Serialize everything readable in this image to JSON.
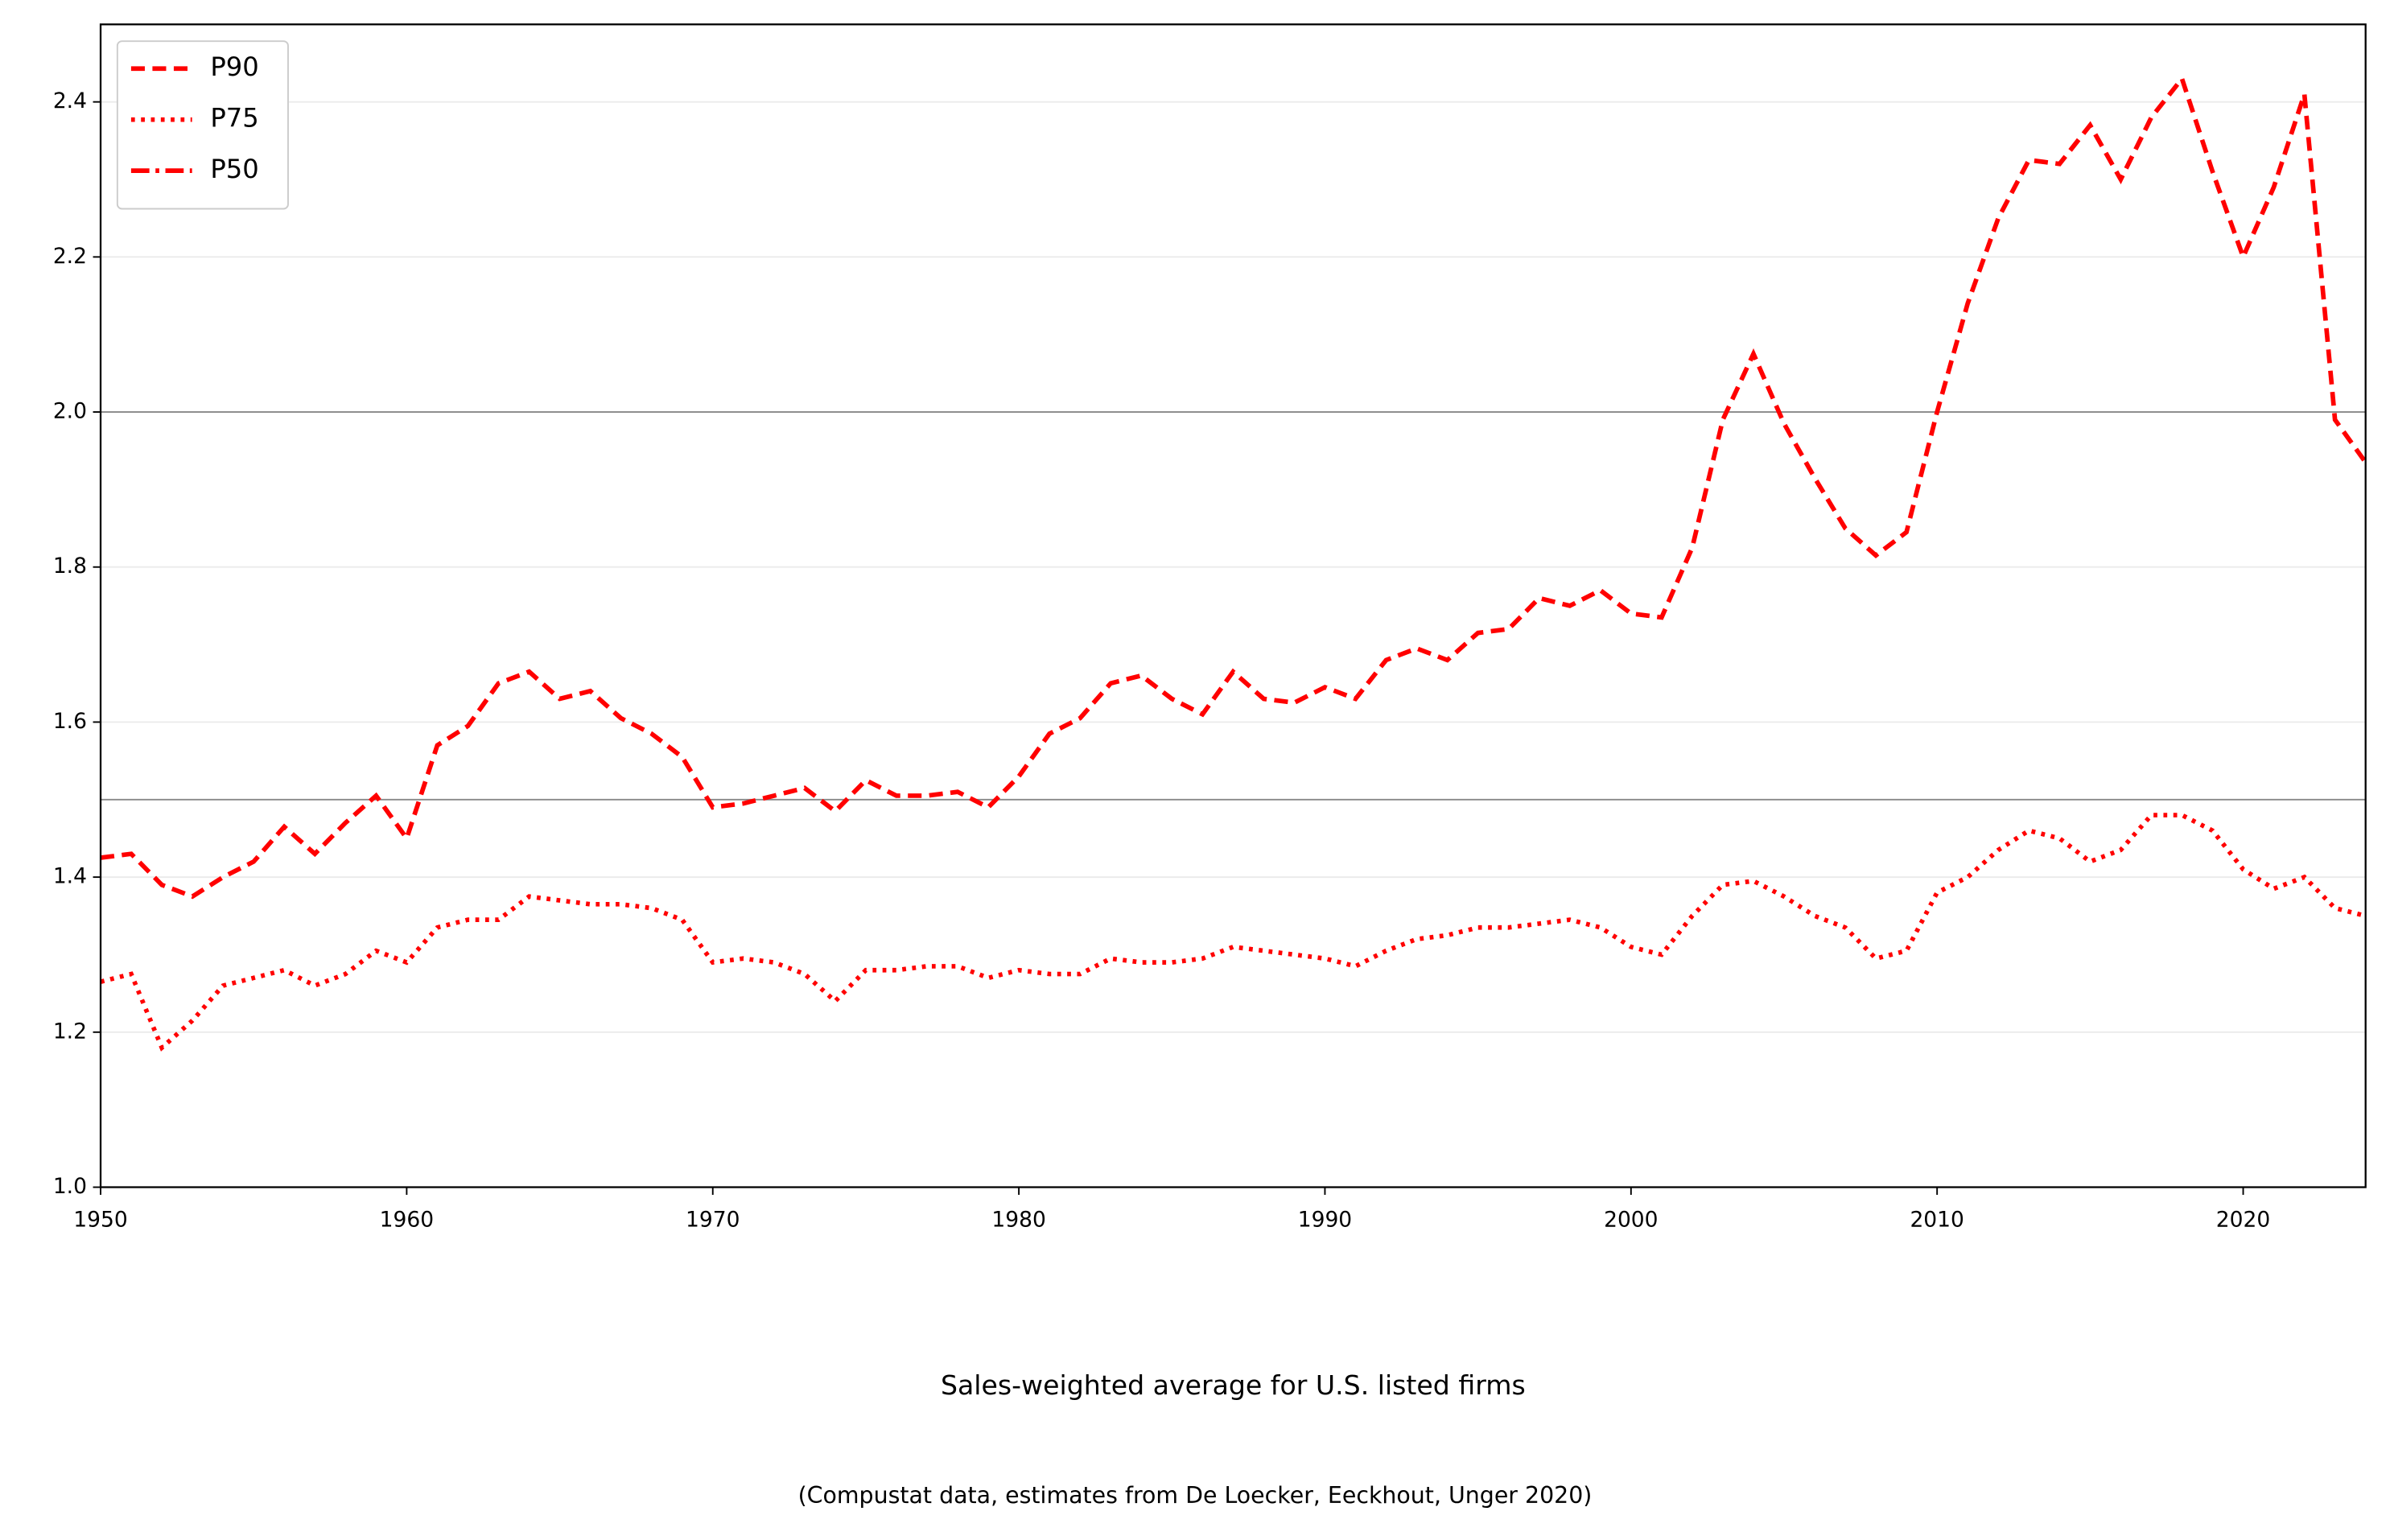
{
  "chart_data": {
    "type": "line",
    "xlabel": "Sales-weighted average for U.S. listed firms",
    "note": "(Compustat data, estimates from De Loecker, Eeckhout, Unger 2020)",
    "x": [
      1950,
      1951,
      1952,
      1953,
      1954,
      1955,
      1956,
      1957,
      1958,
      1959,
      1960,
      1961,
      1962,
      1963,
      1964,
      1965,
      1966,
      1967,
      1968,
      1969,
      1970,
      1971,
      1972,
      1973,
      1974,
      1975,
      1976,
      1977,
      1978,
      1979,
      1980,
      1981,
      1982,
      1983,
      1984,
      1985,
      1986,
      1987,
      1988,
      1989,
      1990,
      1991,
      1992,
      1993,
      1994,
      1995,
      1996,
      1997,
      1998,
      1999,
      2000,
      2001,
      2002,
      2003,
      2004,
      2005,
      2006,
      2007,
      2008,
      2009,
      2010,
      2011,
      2012,
      2013,
      2014,
      2015,
      2016,
      2017,
      2018,
      2019,
      2020,
      2021,
      2022,
      2023,
      2024
    ],
    "series": [
      {
        "name": "P90",
        "color": "#ff0000",
        "dash": "dashed",
        "values": [
          1.425,
          1.43,
          1.39,
          1.375,
          1.4,
          1.42,
          1.465,
          1.43,
          1.47,
          1.505,
          1.45,
          1.57,
          1.595,
          1.65,
          1.665,
          1.63,
          1.64,
          1.605,
          1.585,
          1.555,
          1.49,
          1.495,
          1.505,
          1.515,
          1.485,
          1.525,
          1.505,
          1.505,
          1.51,
          1.49,
          1.53,
          1.585,
          1.605,
          1.65,
          1.66,
          1.63,
          1.61,
          1.665,
          1.63,
          1.625,
          1.645,
          1.63,
          1.68,
          1.695,
          1.68,
          1.715,
          1.72,
          1.76,
          1.75,
          1.77,
          1.74,
          1.735,
          1.825,
          1.99,
          2.075,
          1.985,
          1.915,
          1.85,
          1.815,
          1.845,
          2.0,
          2.14,
          2.25,
          2.325,
          2.32,
          2.37,
          2.3,
          2.38,
          2.43,
          2.31,
          2.2,
          2.29,
          2.41,
          1.99,
          1.935
        ]
      },
      {
        "name": "P75",
        "color": "#ff0000",
        "dash": "dotted",
        "values": [
          1.265,
          1.275,
          1.18,
          1.215,
          1.26,
          1.27,
          1.28,
          1.26,
          1.275,
          1.305,
          1.29,
          1.335,
          1.345,
          1.345,
          1.375,
          1.37,
          1.365,
          1.365,
          1.36,
          1.345,
          1.29,
          1.295,
          1.29,
          1.275,
          1.24,
          1.28,
          1.28,
          1.285,
          1.285,
          1.27,
          1.28,
          1.275,
          1.275,
          1.295,
          1.29,
          1.29,
          1.295,
          1.31,
          1.305,
          1.3,
          1.295,
          1.285,
          1.305,
          1.32,
          1.325,
          1.335,
          1.335,
          1.34,
          1.345,
          1.335,
          1.31,
          1.3,
          1.35,
          1.39,
          1.395,
          1.375,
          1.35,
          1.335,
          1.295,
          1.305,
          1.38,
          1.4,
          1.435,
          1.46,
          1.45,
          1.42,
          1.435,
          1.48,
          1.48,
          1.46,
          1.41,
          1.385,
          1.4,
          1.36,
          1.35
        ]
      },
      {
        "name": "P50",
        "color": "#ff0000",
        "dash": "dashdot",
        "values": [
          null,
          null,
          null,
          null,
          null,
          null,
          null,
          null,
          null,
          null,
          null,
          null,
          null,
          null,
          null,
          null,
          null,
          null,
          null,
          null,
          null,
          null,
          null,
          null,
          null,
          null,
          null,
          null,
          null,
          null,
          null,
          null,
          null,
          null,
          null,
          null,
          null,
          null,
          null,
          null,
          null,
          null,
          null,
          null,
          null,
          null,
          null,
          null,
          null,
          null,
          null,
          null,
          null,
          null,
          null,
          null,
          null,
          null,
          null,
          null,
          null,
          null,
          null,
          null,
          null,
          null,
          null,
          null,
          null,
          null,
          null,
          null,
          null,
          null,
          null
        ]
      }
    ],
    "xlim": [
      1950,
      2024
    ],
    "xticks": [
      1950,
      1960,
      1970,
      1980,
      1990,
      2000,
      2010,
      2020
    ],
    "ylim": [
      1.0,
      2.5
    ],
    "yticks": [
      {
        "value": 1,
        "label": "1.0"
      },
      1.2,
      1.4,
      1.6,
      1.8,
      {
        "value": 2,
        "label": "2.0"
      },
      2.2,
      2.4
    ],
    "hlines": [
      1.5,
      2.0
    ],
    "grid": true,
    "legend": "upper left"
  }
}
